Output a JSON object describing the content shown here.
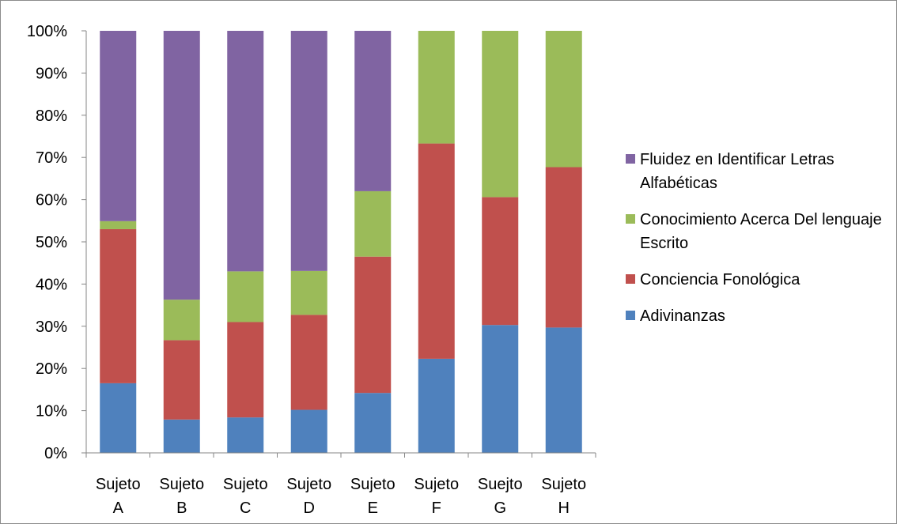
{
  "chart_data": {
    "type": "bar",
    "stacked": true,
    "percent_stacked": true,
    "categories": [
      [
        "Sujeto",
        "A"
      ],
      [
        "Sujeto",
        "B"
      ],
      [
        "Sujeto",
        "C"
      ],
      [
        "Sujeto",
        "D"
      ],
      [
        "Sujeto",
        "E"
      ],
      [
        "Sujeto",
        "F"
      ],
      [
        "Suejto",
        "G"
      ],
      [
        "Sujeto",
        "H"
      ]
    ],
    "series": [
      {
        "name": "Adivinanzas",
        "color": "#4f81bd",
        "values": [
          16.5,
          7.9,
          8.4,
          10.2,
          14.2,
          22.3,
          30.3,
          29.7
        ]
      },
      {
        "name": "Conciencia Fonológica",
        "color": "#c0504d",
        "values": [
          36.5,
          18.8,
          22.6,
          22.5,
          32.3,
          51.0,
          30.3,
          38.0
        ]
      },
      {
        "name": "Conocimiento Acerca Del lenguaje Escrito",
        "color": "#9bbb59",
        "values": [
          1.9,
          9.6,
          12.0,
          10.4,
          15.5,
          26.7,
          39.4,
          32.3
        ]
      },
      {
        "name": "Fluidez en Identificar Letras Alfabéticas",
        "color": "#8064a2",
        "values": [
          45.1,
          63.7,
          57.0,
          56.9,
          38.0,
          0,
          0,
          0
        ]
      }
    ],
    "ylim": [
      0,
      100
    ],
    "yticks": [
      "0%",
      "10%",
      "20%",
      "30%",
      "40%",
      "50%",
      "60%",
      "70%",
      "80%",
      "90%",
      "100%"
    ],
    "legend": {
      "position": "right",
      "items": [
        {
          "label": "Fluidez en Identificar Letras Alfabéticas",
          "color": "#8064a2"
        },
        {
          "label": "Conocimiento Acerca Del lenguaje Escrito",
          "color": "#9bbb59"
        },
        {
          "label": "Conciencia Fonológica",
          "color": "#c0504d"
        },
        {
          "label": "Adivinanzas",
          "color": "#4f81bd"
        }
      ]
    },
    "grid": false
  }
}
